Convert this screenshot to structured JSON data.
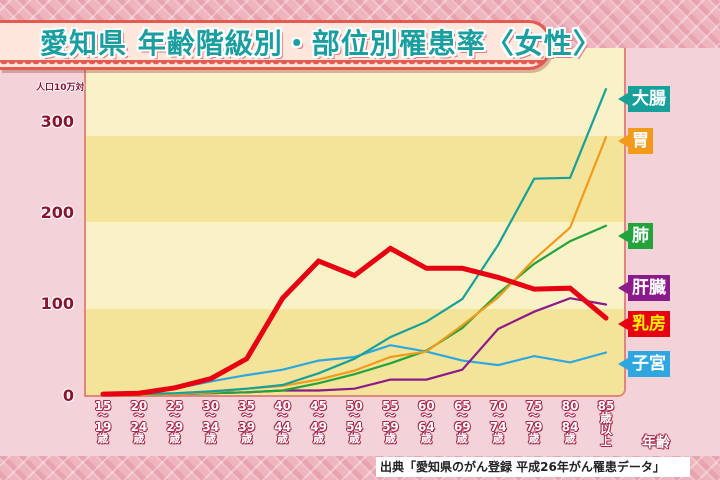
{
  "title": "愛知県 年齢階級別・部位別罹患率〈女性〉",
  "source": "出典「愛知県のがん登録 平成26年がん罹患データ」",
  "chart_data": {
    "type": "line",
    "title": "愛知県 年齢階級別・部位別罹患率〈女性〉",
    "xlabel": "年齢",
    "ylabel": "人口10万対",
    "ylim": [
      0,
      300
    ],
    "yticks": [
      0,
      100,
      200,
      300
    ],
    "grid": false,
    "legend_position": "right (end-of-line labels)",
    "categories": [
      "15〜19歳",
      "20〜24歳",
      "25〜29歳",
      "30〜34歳",
      "35〜39歳",
      "40〜44歳",
      "45〜49歳",
      "50〜54歳",
      "55〜59歳",
      "60〜64歳",
      "65〜69歳",
      "70〜74歳",
      "75〜79歳",
      "80〜84歳",
      "85歳以上"
    ],
    "series": [
      {
        "name": "大腸",
        "color": "#17a09a",
        "values": [
          0,
          1,
          2,
          4,
          7,
          11,
          24,
          40,
          64,
          81,
          106,
          166,
          239,
          240,
          338
        ]
      },
      {
        "name": "胃",
        "color": "#f39a1a",
        "values": [
          0,
          0,
          1,
          3,
          7,
          10,
          17,
          27,
          42,
          48,
          77,
          108,
          150,
          185,
          285
        ]
      },
      {
        "name": "肺",
        "color": "#22a33c",
        "values": [
          0,
          0,
          1,
          2,
          3,
          5,
          13,
          23,
          35,
          49,
          74,
          112,
          145,
          170,
          187
        ]
      },
      {
        "name": "肝臓",
        "color": "#8b1a8a",
        "values": [
          0,
          0,
          1,
          2,
          3,
          5,
          5,
          7,
          17,
          17,
          28,
          73,
          92,
          107,
          100
        ]
      },
      {
        "name": "乳房",
        "color": "#e60012",
        "values": [
          1,
          2,
          8,
          18,
          40,
          107,
          148,
          132,
          162,
          140,
          140,
          130,
          117,
          118,
          85
        ]
      },
      {
        "name": "子宮",
        "color": "#2ea7e0",
        "values": [
          0,
          2,
          7,
          15,
          22,
          28,
          38,
          42,
          55,
          48,
          38,
          33,
          43,
          36,
          47
        ]
      }
    ]
  },
  "axis": {
    "unit": "人口10万対",
    "yticks": [
      "300",
      "200",
      "100",
      "0"
    ],
    "xlabel": "年齢",
    "xticks": [
      {
        "from": "15",
        "sep": "〜",
        "to": "19",
        "suffix": "歳"
      },
      {
        "from": "20",
        "sep": "〜",
        "to": "24",
        "suffix": "歳"
      },
      {
        "from": "25",
        "sep": "〜",
        "to": "29",
        "suffix": "歳"
      },
      {
        "from": "30",
        "sep": "〜",
        "to": "34",
        "suffix": "歳"
      },
      {
        "from": "35",
        "sep": "〜",
        "to": "39",
        "suffix": "歳"
      },
      {
        "from": "40",
        "sep": "〜",
        "to": "44",
        "suffix": "歳"
      },
      {
        "from": "45",
        "sep": "〜",
        "to": "49",
        "suffix": "歳"
      },
      {
        "from": "50",
        "sep": "〜",
        "to": "54",
        "suffix": "歳"
      },
      {
        "from": "55",
        "sep": "〜",
        "to": "59",
        "suffix": "歳"
      },
      {
        "from": "60",
        "sep": "〜",
        "to": "64",
        "suffix": "歳"
      },
      {
        "from": "65",
        "sep": "〜",
        "to": "69",
        "suffix": "歳"
      },
      {
        "from": "70",
        "sep": "〜",
        "to": "74",
        "suffix": "歳"
      },
      {
        "from": "75",
        "sep": "〜",
        "to": "79",
        "suffix": "歳"
      },
      {
        "from": "80",
        "sep": "〜",
        "to": "84",
        "suffix": "歳"
      },
      {
        "from": "85",
        "sep": "歳",
        "to": "以",
        "suffix": "上"
      }
    ]
  },
  "legend": [
    {
      "label": "大腸",
      "bg": "#17a09a",
      "text": "#ffffff"
    },
    {
      "label": "胃",
      "bg": "#f39a1a",
      "text": "#ffffff"
    },
    {
      "label": "肺",
      "bg": "#22a33c",
      "text": "#ffffff"
    },
    {
      "label": "肝臓",
      "bg": "#8b1a8a",
      "text": "#ffffff"
    },
    {
      "label": "乳房",
      "bg": "#e60012",
      "text": "#fff200"
    },
    {
      "label": "子宮",
      "bg": "#2ea7e0",
      "text": "#ffffff"
    }
  ]
}
